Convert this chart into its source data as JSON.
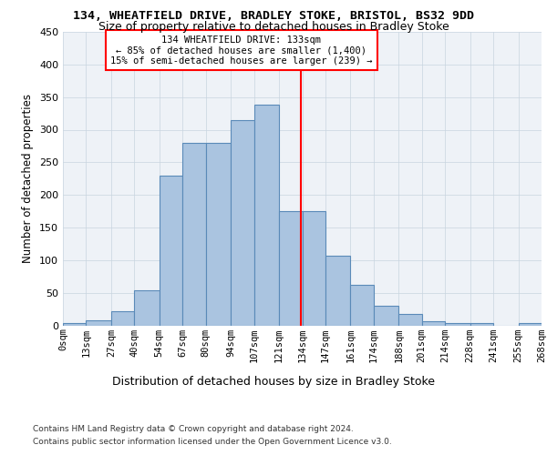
{
  "title1": "134, WHEATFIELD DRIVE, BRADLEY STOKE, BRISTOL, BS32 9DD",
  "title2": "Size of property relative to detached houses in Bradley Stoke",
  "xlabel": "Distribution of detached houses by size in Bradley Stoke",
  "ylabel": "Number of detached properties",
  "bin_labels": [
    "0sqm",
    "13sqm",
    "27sqm",
    "40sqm",
    "54sqm",
    "67sqm",
    "80sqm",
    "94sqm",
    "107sqm",
    "121sqm",
    "134sqm",
    "147sqm",
    "161sqm",
    "174sqm",
    "188sqm",
    "201sqm",
    "214sqm",
    "228sqm",
    "241sqm",
    "255sqm",
    "268sqm"
  ],
  "bin_edges": [
    0,
    13,
    27,
    40,
    54,
    67,
    80,
    94,
    107,
    121,
    134,
    147,
    161,
    174,
    188,
    201,
    214,
    228,
    241,
    255,
    268
  ],
  "bar_heights": [
    3,
    7,
    22,
    54,
    230,
    280,
    280,
    315,
    338,
    175,
    175,
    107,
    62,
    30,
    18,
    6,
    3,
    3,
    0,
    3
  ],
  "bar_color": "#aac4e0",
  "bar_edge_color": "#5a8ab8",
  "vline_x": 133,
  "vline_color": "red",
  "annotation_title": "134 WHEATFIELD DRIVE: 133sqm",
  "annotation_line1": "← 85% of detached houses are smaller (1,400)",
  "annotation_line2": "15% of semi-detached houses are larger (239) →",
  "annotation_box_color": "red",
  "ylim": [
    0,
    450
  ],
  "yticks": [
    0,
    50,
    100,
    150,
    200,
    250,
    300,
    350,
    400,
    450
  ],
  "footnote1": "Contains HM Land Registry data © Crown copyright and database right 2024.",
  "footnote2": "Contains public sector information licensed under the Open Government Licence v3.0.",
  "bg_color": "#eef2f7",
  "grid_color": "#c8d4e0"
}
